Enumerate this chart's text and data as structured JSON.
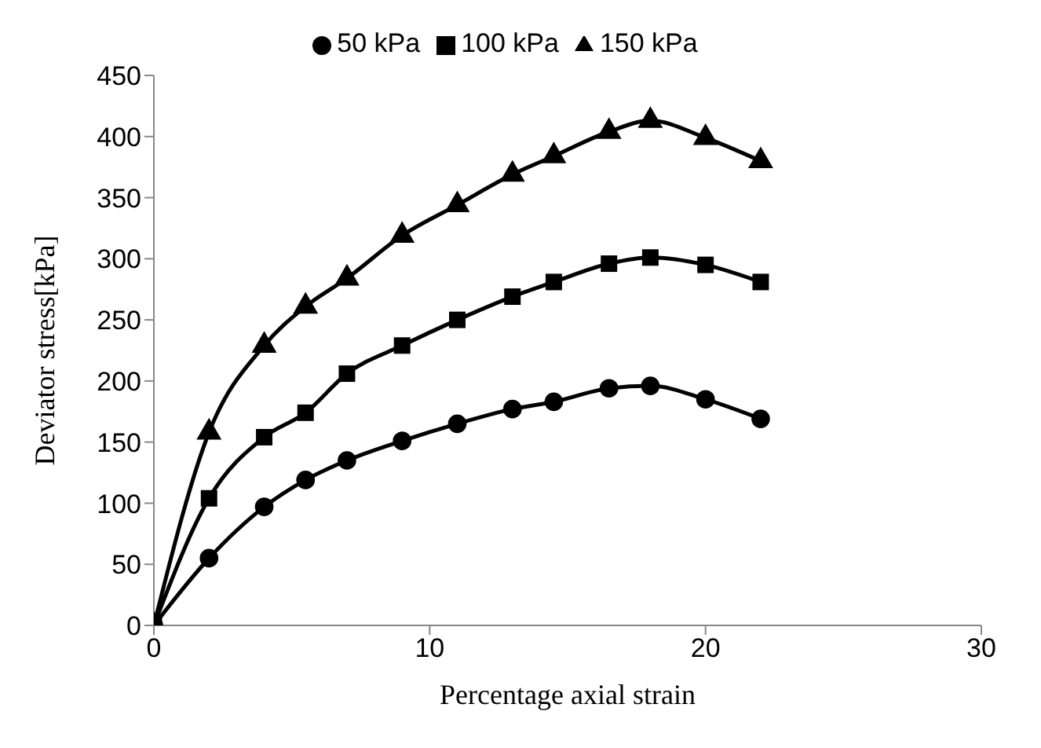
{
  "chart_data": {
    "type": "line",
    "xlabel": "Percentage axial strain",
    "ylabel": "Deviator stress[kPa]",
    "x": [
      0,
      2,
      4,
      5.5,
      7,
      9,
      11,
      13,
      14.5,
      16.5,
      18,
      20,
      22
    ],
    "series": [
      {
        "name": "50 kPa",
        "color": "#000000",
        "marker": "circle",
        "values": [
          0,
          55,
          97,
          119,
          135,
          151,
          165,
          177,
          183,
          194,
          196,
          185,
          169
        ]
      },
      {
        "name": "100 kPa",
        "color": "#000000",
        "marker": "square",
        "values": [
          0,
          104,
          154,
          174,
          206,
          229,
          250,
          269,
          281,
          296,
          301,
          295,
          281
        ]
      },
      {
        "name": "150 kPa",
        "color": "#000000",
        "marker": "triangle",
        "values": [
          0,
          158,
          229,
          261,
          284,
          319,
          344,
          369,
          384,
          404,
          413,
          399,
          380
        ]
      }
    ],
    "xlim": [
      0,
      30
    ],
    "xticks": [
      0,
      10,
      20,
      30
    ],
    "ylim": [
      0,
      450
    ],
    "yticks": [
      0,
      50,
      100,
      150,
      200,
      250,
      300,
      350,
      400,
      450
    ],
    "grid": false,
    "legend": "top"
  }
}
